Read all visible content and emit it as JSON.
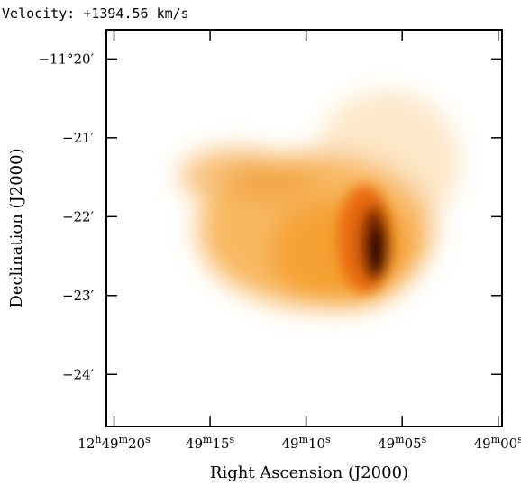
{
  "chart_data": {
    "type": "image",
    "title": "Velocity: +1394.56 km/s",
    "xlabel": "Right Ascension (J2000)",
    "ylabel": "Declination (J2000)",
    "xlim": [
      20.4,
      -0.2
    ],
    "ylim": [
      -24.66,
      -19.63
    ],
    "xticks": [
      {
        "value": 20,
        "label": [
          "12",
          "h",
          "49",
          "m",
          "20",
          "s"
        ]
      },
      {
        "value": 15,
        "label": [
          "49",
          "m",
          "15",
          "s"
        ]
      },
      {
        "value": 10,
        "label": [
          "49",
          "m",
          "10",
          "s"
        ]
      },
      {
        "value": 5,
        "label": [
          "49",
          "m",
          "05",
          "s"
        ]
      },
      {
        "value": 0,
        "label": [
          "49",
          "m",
          "00",
          "s"
        ]
      }
    ],
    "yticks": [
      {
        "value": -20,
        "label": "−11°20′"
      },
      {
        "value": -21,
        "label": "−21′"
      },
      {
        "value": -22,
        "label": "−22′"
      },
      {
        "value": -23,
        "label": "−23′"
      },
      {
        "value": -24,
        "label": "−24′"
      }
    ]
  }
}
